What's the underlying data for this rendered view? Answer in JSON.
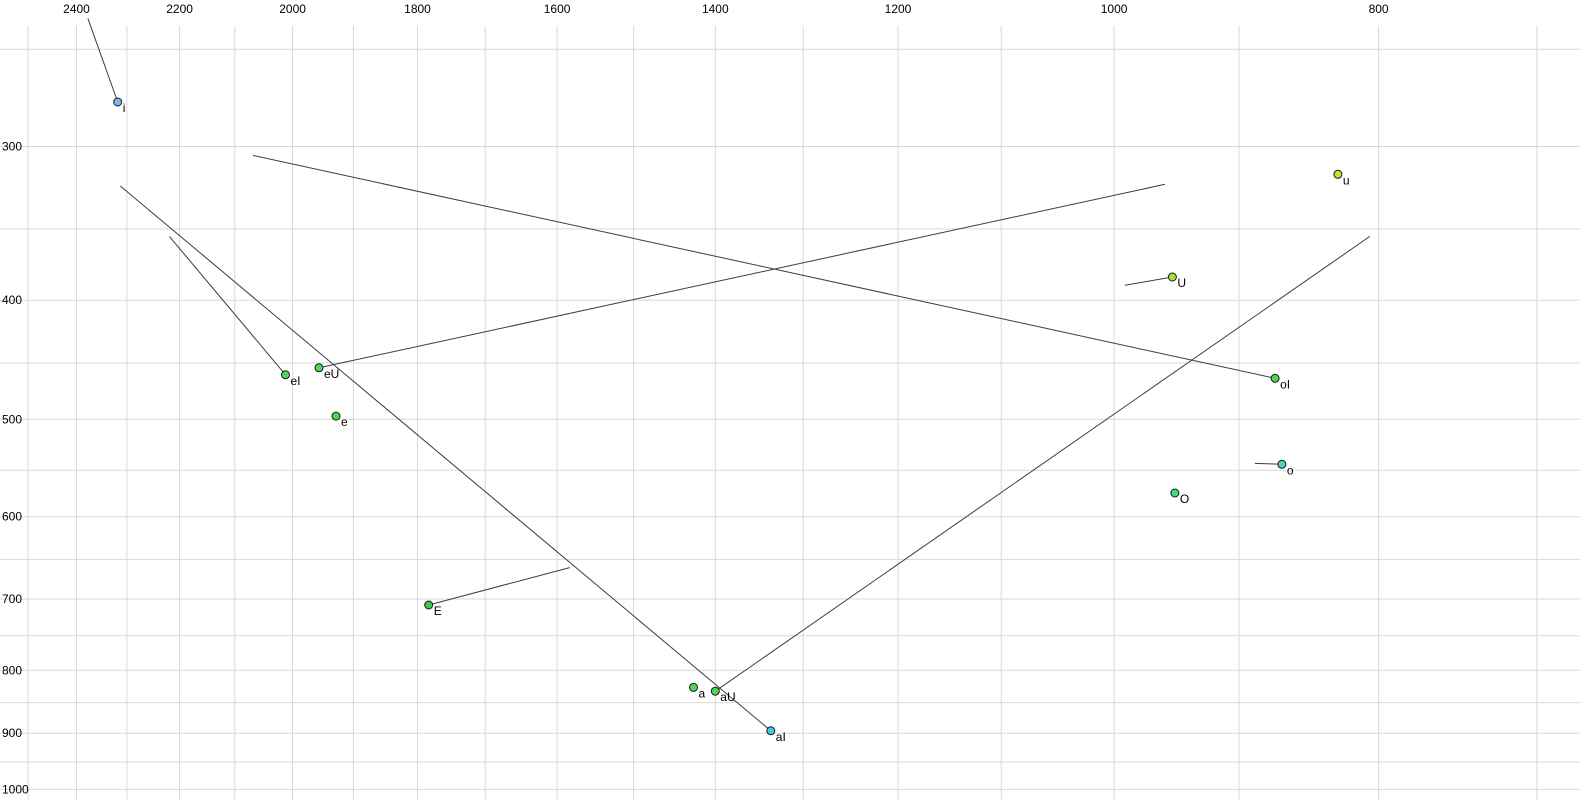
{
  "chart_data": {
    "type": "scatter",
    "title": "",
    "xlabel": "",
    "ylabel": "",
    "description_of_content": "vowel formant plot: F2 on x-axis (reversed, log scale), F1 on y-axis (increasing downward, log scale), units Hz",
    "xlim": [
      2560,
      675
    ],
    "ylim": [
      228,
      1020
    ],
    "x_axis": {
      "ticks": [
        2400,
        2200,
        2000,
        1800,
        1600,
        1400,
        1200,
        1000,
        800
      ],
      "scale": "log",
      "reversed": true,
      "grid_from": 2500,
      "grid_to": 700,
      "grid_step": 100
    },
    "y_axis": {
      "ticks": [
        300,
        400,
        500,
        600,
        700,
        800,
        900,
        1000
      ],
      "scale": "log",
      "direction": "down",
      "grid_from": 250,
      "grid_to": 1000,
      "grid_step": 50
    },
    "points": [
      {
        "label": "i",
        "f2": 2318,
        "f1": 276,
        "color": "#7ab4e8",
        "glide": {
          "f2": 2377,
          "f1": 236
        }
      },
      {
        "label": "u",
        "f2": 828,
        "f1": 316,
        "color": "#c8e032"
      },
      {
        "label": "U",
        "f2": 952,
        "f1": 383,
        "color": "#a6e032",
        "glide": {
          "f2": 991,
          "f1": 389
        }
      },
      {
        "label": "eI",
        "f2": 2012,
        "f1": 460,
        "color": "#4ad858",
        "glide": {
          "f2": 2219,
          "f1": 355
        }
      },
      {
        "label": "eU",
        "f2": 1956,
        "f1": 454,
        "color": "#4ad858",
        "glide": {
          "f2": 958,
          "f1": 322
        }
      },
      {
        "label": "e",
        "f2": 1928,
        "f1": 497,
        "color": "#4ad858"
      },
      {
        "label": "oI",
        "f2": 873,
        "f1": 463,
        "color": "#4ad858",
        "glide": {
          "f2": 2068,
          "f1": 305
        }
      },
      {
        "label": "o",
        "f2": 868,
        "f1": 544,
        "color": "#46d8c8",
        "glide": {
          "f2": 888,
          "f1": 543
        }
      },
      {
        "label": "O",
        "f2": 950,
        "f1": 574,
        "color": "#46d88a"
      },
      {
        "label": "E",
        "f2": 1783,
        "f1": 708,
        "color": "#44c455",
        "glide": {
          "f2": 1583,
          "f1": 660
        }
      },
      {
        "label": "a",
        "f2": 1426,
        "f1": 826,
        "color": "#4ad858"
      },
      {
        "label": "aU",
        "f2": 1400,
        "f1": 832,
        "color": "#4ad858",
        "glide": {
          "f2": 806,
          "f1": 355
        }
      },
      {
        "label": "aI",
        "f2": 1336,
        "f1": 896,
        "color": "#48c8e0",
        "glide": {
          "f2": 2313,
          "f1": 323
        }
      }
    ],
    "style": {
      "background": "#ffffff",
      "grid_color": "#d9d9d9",
      "trajectory_color": "#3c3c3c",
      "point_stroke": "#1a1a1a",
      "point_radius": 4,
      "tick_color": "#000000",
      "label_color": "#000000",
      "tick_font_size": 12,
      "label_font_size": 12
    }
  }
}
